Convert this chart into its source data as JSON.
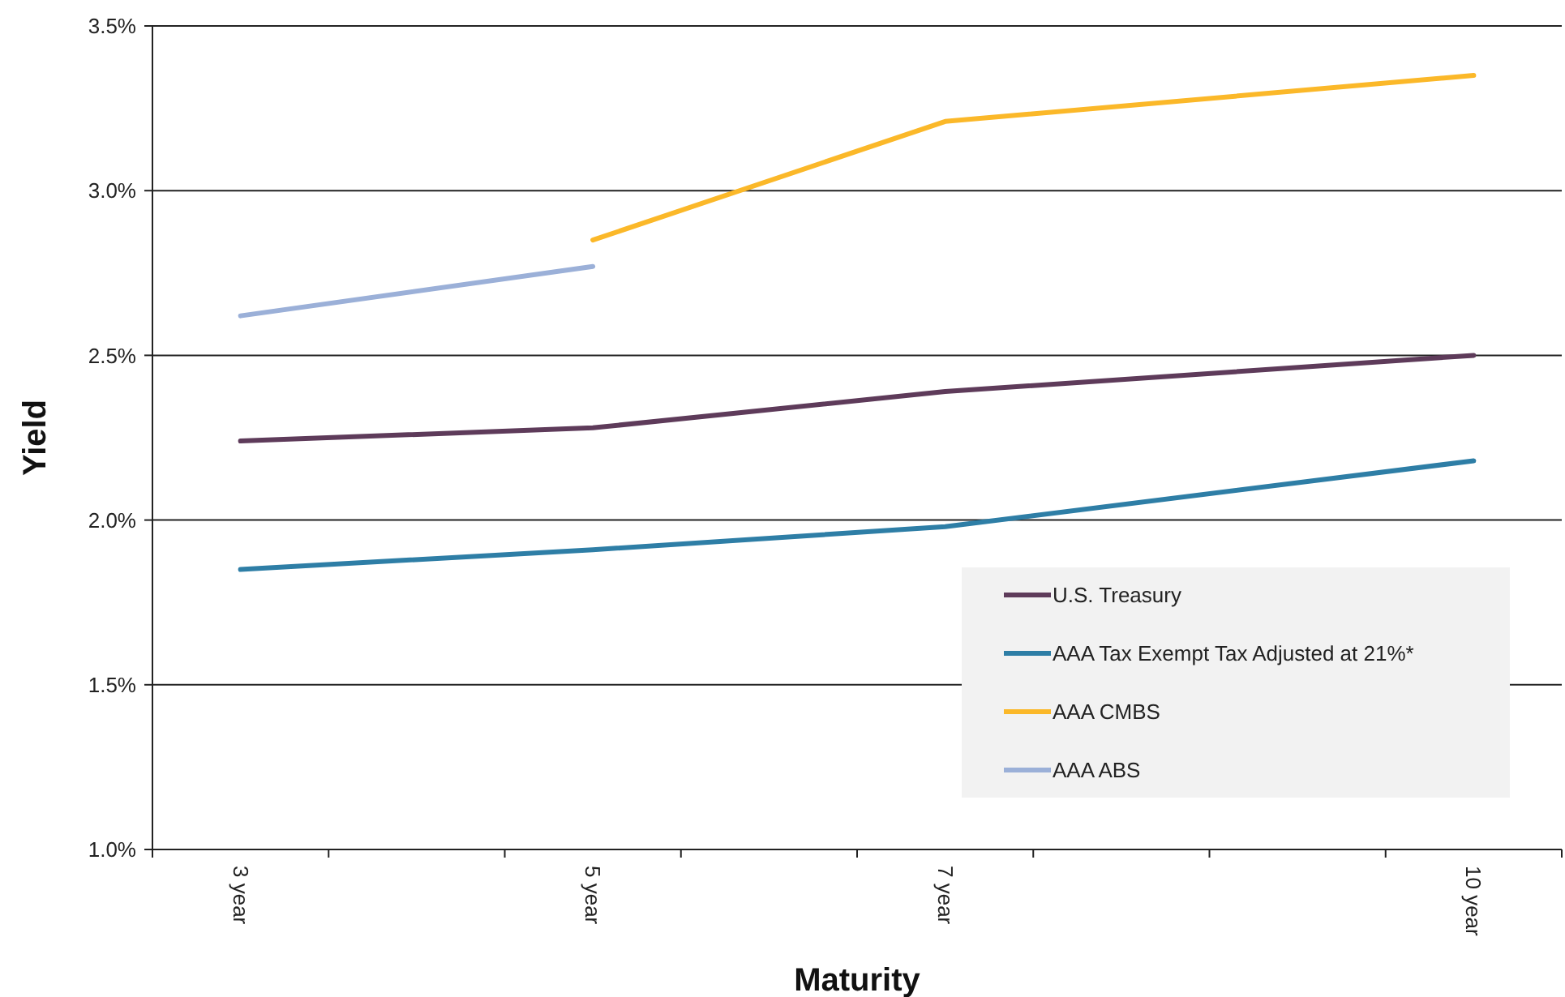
{
  "chart_data": {
    "type": "line",
    "xlabel": "Maturity",
    "ylabel": "Yield",
    "categories": [
      "3 year",
      null,
      "5 year",
      null,
      "7 year",
      null,
      null,
      "10 year"
    ],
    "series": [
      {
        "name": "U.S. Treasury",
        "color": "#5e3b5a",
        "values": [
          2.24,
          null,
          2.28,
          null,
          2.39,
          null,
          null,
          2.5
        ]
      },
      {
        "name": "AAA Tax Exempt Tax Adjusted at 21%*",
        "color": "#2e7ea6",
        "values": [
          1.85,
          null,
          1.91,
          null,
          1.98,
          null,
          null,
          2.18
        ]
      },
      {
        "name": "AAA CMBS",
        "color": "#fbb829",
        "values": [
          null,
          null,
          2.85,
          null,
          3.21,
          null,
          null,
          3.35
        ]
      },
      {
        "name": "AAA ABS",
        "color": "#9bb0d8",
        "values": [
          2.62,
          null,
          2.77,
          null,
          null,
          null,
          null,
          null
        ]
      }
    ],
    "ylim": [
      1,
      3.5
    ],
    "yticks": [
      {
        "value": 1,
        "label": "1.0%"
      },
      {
        "value": 1.5,
        "label": "1.5%"
      },
      {
        "value": 2,
        "label": "2.0%"
      },
      {
        "value": 2.5,
        "label": "2.5%"
      },
      {
        "value": 3,
        "label": "3.0%"
      },
      {
        "value": 3.5,
        "label": "3.5%"
      }
    ],
    "grid": "y",
    "legend": "bottom right",
    "line_style": "solid"
  }
}
